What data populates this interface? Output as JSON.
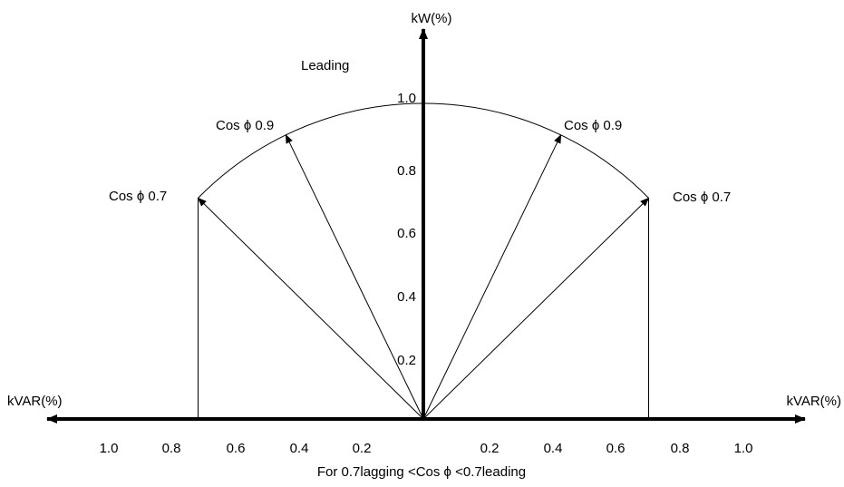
{
  "diagram": {
    "y_axis_label": "kW(%)",
    "x_axis_label_left": "kVAR(%)",
    "x_axis_label_right": "kVAR(%)",
    "leading_label": "Leading",
    "caption": "For 0.7lagging <Cos ϕ <0.7leading",
    "y_ticks": [
      "0.2",
      "0.4",
      "0.6",
      "0.8",
      "1.0"
    ],
    "x_ticks_left": [
      "1.0",
      "0.8",
      "0.6",
      "0.4",
      "0.2"
    ],
    "x_ticks_right": [
      "0.2",
      "0.4",
      "0.6",
      "0.8",
      "1.0"
    ],
    "vectors": [
      {
        "side": "left",
        "cos_phi": 0.7,
        "label": "Cos ϕ  0.7"
      },
      {
        "side": "left",
        "cos_phi": 0.9,
        "label": "Cos ϕ  0.9"
      },
      {
        "side": "right",
        "cos_phi": 0.9,
        "label": "Cos ϕ  0.9"
      },
      {
        "side": "right",
        "cos_phi": 0.7,
        "label": "Cos ϕ  0.7"
      }
    ],
    "arc_radius": 1.0,
    "line_color": "#000000",
    "background_color": "#ffffff"
  }
}
